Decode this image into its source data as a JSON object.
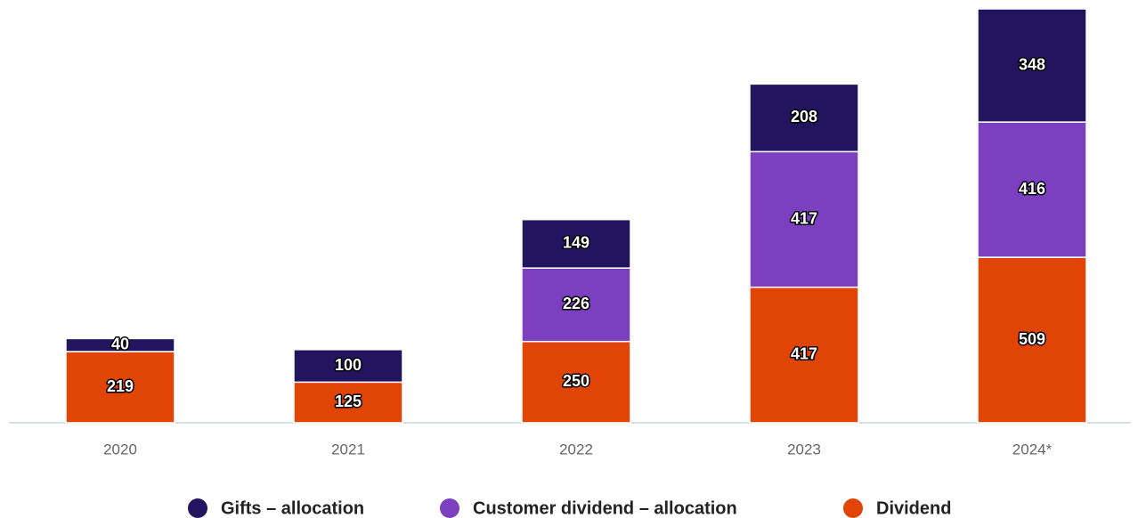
{
  "chart_data": {
    "type": "bar",
    "stacked": true,
    "categories": [
      "2020",
      "2021",
      "2022",
      "2023",
      "2024*"
    ],
    "series": [
      {
        "name": "Gifts – allocation",
        "color": "#22145f",
        "values": [
          40,
          100,
          149,
          208,
          348
        ]
      },
      {
        "name": "Customer dividend – allocation",
        "color": "#7b3fc0",
        "values": [
          null,
          null,
          226,
          417,
          416
        ]
      },
      {
        "name": "Dividend",
        "color": "#e04505",
        "values": [
          219,
          125,
          250,
          417,
          509
        ]
      }
    ]
  }
}
